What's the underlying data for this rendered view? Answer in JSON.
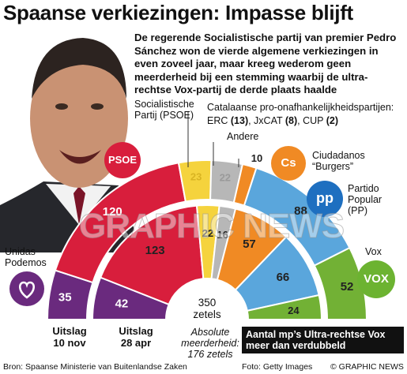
{
  "title": "Spaanse verkiezingen: Impasse blijft",
  "subtitle": "De regerende Socialistische partij van premier Pedro Sánchez won de vierde algemene verkiezingen in even zoveel jaar, maar kreeg wederom geen meerderheid bij een stemming waarbij de ultra-rechtse Vox-partij de derde plaats haalde",
  "labels": {
    "psoe": "Socialistische Partij (PSOE)",
    "catalan": "Catalaanse pro-onafhankelijkheidspartijen:",
    "catalan_detail_1": "ERC ",
    "catalan_erc": "(13)",
    "catalan_detail_2": ", JxCAT ",
    "catalan_jxcat": "(8)",
    "catalan_detail_3": ", CUP ",
    "catalan_cup": "(2)",
    "andere": "Andere",
    "ciudadanos": "Ciudadanos “Burgers”",
    "pp": "Partido Popular (PP)",
    "vox": "Vox",
    "podemos": "Unidas Podemos"
  },
  "logos": {
    "psoe": "PSOE",
    "ciudadanos": "Cs",
    "pp": "pp",
    "vox": "VOX"
  },
  "rings": {
    "outer_label_1": "Uitslag",
    "outer_label_2": "10 nov",
    "inner_label_1": "Uitslag",
    "inner_label_2": "28 apr"
  },
  "total": {
    "value": "350",
    "unit": "zetels"
  },
  "majority": "Absolute meerderheid: 176 zetels",
  "callout": "Aantal mp’s Ultra-rechtse Vox meer dan verdubbeld",
  "source": "Bron: Spaanse Ministerie van Buitenlandse Zaken",
  "photo_credit": "Foto: Getty Images",
  "copyright": "© GRAPHIC NEWS",
  "watermark": "GRAPHIC NEWS",
  "colors": {
    "podemos": "#6a2a7e",
    "psoe": "#d81e3c",
    "catalan": "#f5d33d",
    "andere": "#b7b7b7",
    "cs": "#f08a24",
    "pp": "#5aa6dc",
    "vox": "#72b135"
  },
  "chart_data": {
    "type": "parliament-semicircle",
    "total_seats": 350,
    "majority": 176,
    "categories": [
      "Unidas Podemos",
      "PSOE",
      "Catalaanse partijen",
      "Andere",
      "Ciudadanos",
      "PP",
      "Vox"
    ],
    "series": [
      {
        "name": "Uitslag 10 nov",
        "values": [
          35,
          120,
          23,
          22,
          10,
          88,
          52
        ]
      },
      {
        "name": "Uitslag 28 apr",
        "values": [
          42,
          123,
          22,
          16,
          57,
          66,
          24
        ]
      }
    ]
  }
}
